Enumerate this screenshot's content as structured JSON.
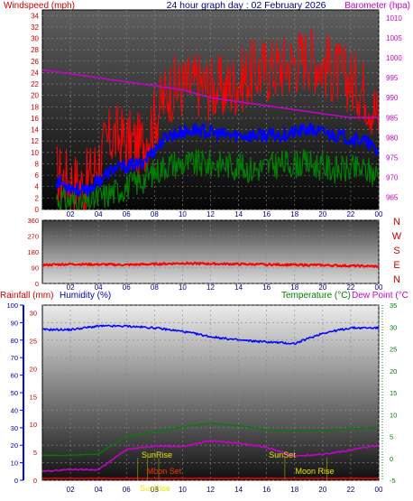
{
  "title": "24 hour graph day : 02 February 2026",
  "time_ticks": [
    "02",
    "04",
    "06",
    "08",
    "10",
    "12",
    "14",
    "16",
    "18",
    "20",
    "22",
    "00"
  ],
  "colors": {
    "wind_speed": "#ff0000",
    "wind_avg": "#0000ff",
    "wind_low": "#008000",
    "barometer": "#cc00cc",
    "direction": "#ff0000",
    "rain": "#ff0000",
    "humidity": "#0000ff",
    "temperature": "#008000",
    "dew_point": "#cc00cc",
    "event_label": "#e6e600"
  },
  "chart_data": [
    {
      "type": "line",
      "name": "wind-barometer",
      "left_axis_label": "Windspeed (mph)",
      "right_axis_label": "Barometer (hpa)",
      "left_ticks": [
        "0",
        "2",
        "4",
        "6",
        "8",
        "10",
        "12",
        "14",
        "16",
        "18",
        "20",
        "22",
        "24",
        "26",
        "28",
        "30",
        "32",
        "34"
      ],
      "right_ticks": [
        "965",
        "970",
        "975",
        "980",
        "985",
        "990",
        "995",
        "1000",
        "1005",
        "1010"
      ],
      "ylim_left": [
        0,
        35
      ],
      "ylim_right": [
        962,
        1012
      ],
      "x_hours": [
        1,
        3,
        5,
        7,
        9,
        11,
        13,
        15,
        17,
        19,
        21,
        23,
        24
      ],
      "series": [
        {
          "key": "wind_speed",
          "values": [
            6,
            4,
            13,
            11,
            21,
            22,
            21,
            24,
            25,
            27,
            24,
            21,
            16
          ]
        },
        {
          "key": "wind_avg",
          "values": [
            5,
            3,
            7,
            8,
            13,
            14,
            13,
            13,
            13,
            14,
            13,
            12,
            10
          ]
        },
        {
          "key": "wind_low",
          "values": [
            2,
            1,
            3,
            5,
            8,
            8,
            8,
            7,
            8,
            8,
            7,
            7,
            6
          ]
        },
        {
          "key": "barometer",
          "values": [
            997,
            996,
            994,
            993,
            992,
            990,
            989,
            988,
            987,
            987,
            986,
            985,
            985
          ]
        }
      ]
    },
    {
      "type": "line",
      "name": "wind-direction",
      "left_ticks": [
        "0",
        "90",
        "180",
        "270",
        "360"
      ],
      "compass_labels": [
        "N",
        "W",
        "S",
        "E",
        "N"
      ],
      "ylim": [
        0,
        360
      ],
      "x_hours": [
        0,
        2,
        4,
        6,
        8,
        10,
        12,
        14,
        16,
        18,
        20,
        22,
        24
      ],
      "series": [
        {
          "key": "direction",
          "values": [
            105,
            110,
            108,
            106,
            110,
            115,
            112,
            110,
            108,
            106,
            104,
            100,
            97
          ]
        }
      ]
    },
    {
      "type": "line",
      "name": "rain-humidity-temperature",
      "rain_axis_label": "Rainfall (mm)",
      "humidity_axis_label": "Humidity (%)",
      "temperature_axis_label": "Temperature (°C)",
      "dew_axis_label": "Dew Point (°C",
      "humidity_ticks": [
        "0",
        "10",
        "20",
        "30",
        "40",
        "50",
        "60",
        "70",
        "80",
        "90",
        "100"
      ],
      "rain_ticks": [
        "0",
        "5",
        "10",
        "15",
        "20",
        "25",
        "30"
      ],
      "temp_ticks": [
        "-5",
        "0",
        "5",
        "10",
        "15",
        "20",
        "25",
        "30",
        "35"
      ],
      "ylim_humidity": [
        0,
        100
      ],
      "ylim_temp": [
        -5,
        35
      ],
      "x_hours": [
        0,
        2,
        4,
        6,
        8,
        10,
        12,
        14,
        16,
        18,
        20,
        22,
        24
      ],
      "series": [
        {
          "key": "humidity",
          "values": [
            86,
            86,
            88,
            88,
            87,
            85,
            82,
            80,
            79,
            78,
            84,
            87,
            87
          ]
        },
        {
          "key": "temperature",
          "values": [
            0.7,
            0.7,
            1.0,
            5.0,
            6.0,
            7.2,
            8.0,
            7.5,
            6.5,
            6.3,
            6.3,
            6.8,
            7.0
          ]
        },
        {
          "key": "dew_point",
          "values": [
            -3.0,
            -2.5,
            -2.6,
            2.0,
            2.8,
            2.7,
            4.0,
            3.5,
            2.5,
            0.5,
            0.9,
            1.9,
            3.0
          ]
        },
        {
          "key": "rain",
          "values": [
            0,
            0,
            0,
            0,
            0,
            0,
            0,
            0,
            0,
            0,
            0,
            0,
            0
          ]
        }
      ],
      "events": [
        {
          "label": "SunRise",
          "hour": 7.5
        },
        {
          "label": "SunSet",
          "hour": 17.3
        },
        {
          "label": "Moon Set",
          "hour": 8.3
        },
        {
          "label": "Moon Rise",
          "hour": 20.3
        },
        {
          "label": "SunRise",
          "hour": 6.8
        }
      ]
    }
  ]
}
